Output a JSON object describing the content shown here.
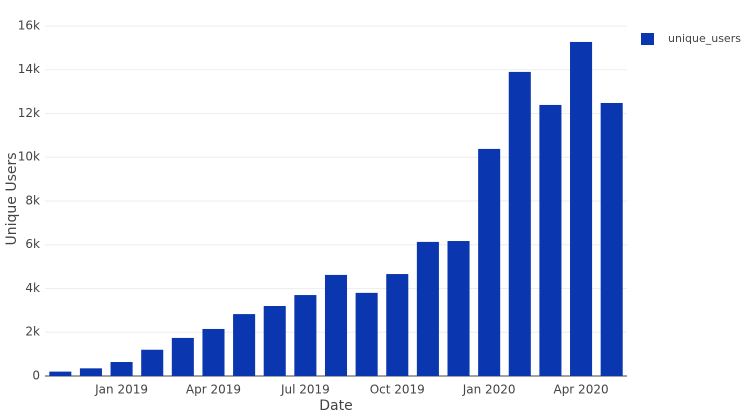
{
  "chart_data": {
    "type": "bar",
    "x_label": "Date",
    "y_label": "Unique Users",
    "x": [
      "2018-11",
      "2018-12",
      "2019-01",
      "2019-02",
      "2019-03",
      "2019-04",
      "2019-05",
      "2019-06",
      "2019-07",
      "2019-08",
      "2019-09",
      "2019-10",
      "2019-11",
      "2019-12",
      "2020-01",
      "2020-02",
      "2020-03",
      "2020-04",
      "2020-05"
    ],
    "series": [
      {
        "name": "unique_users",
        "color": "#0a36b0",
        "values": [
          200,
          350,
          640,
          1200,
          1740,
          2150,
          2830,
          3200,
          3700,
          4620,
          3800,
          4660,
          6130,
          6170,
          10380,
          13900,
          12390,
          15270,
          12480
        ]
      }
    ],
    "xticks": [
      {
        "value": "2019-01",
        "label": "Jan 2019"
      },
      {
        "value": "2019-04",
        "label": "Apr 2019"
      },
      {
        "value": "2019-07",
        "label": "Jul 2019"
      },
      {
        "value": "2019-10",
        "label": "Oct 2019"
      },
      {
        "value": "2020-01",
        "label": "Jan 2020"
      },
      {
        "value": "2020-04",
        "label": "Apr 2020"
      }
    ],
    "ylim": [
      0,
      16200
    ],
    "yticks": [
      0,
      {
        "value": 2000,
        "label": "2k"
      },
      {
        "value": 4000,
        "label": "4k"
      },
      {
        "value": 6000,
        "label": "6k"
      },
      {
        "value": 8000,
        "label": "8k"
      },
      {
        "value": 10000,
        "label": "10k"
      },
      {
        "value": 12000,
        "label": "12k"
      },
      {
        "value": 14000,
        "label": "14k"
      },
      {
        "value": 16000,
        "label": "16k"
      }
    ],
    "grid": true,
    "legend": "top-right"
  }
}
